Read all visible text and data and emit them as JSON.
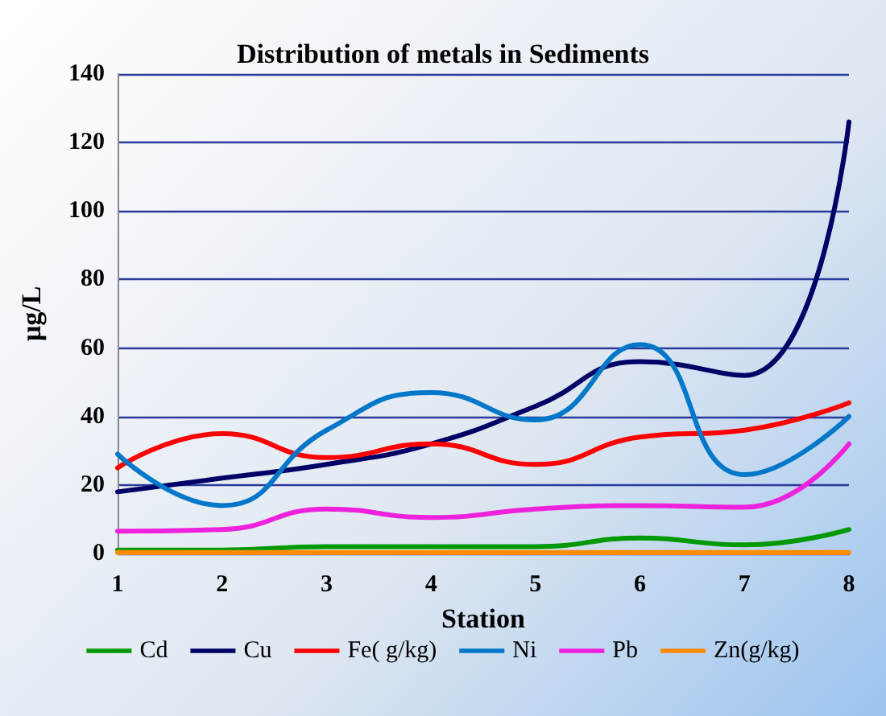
{
  "chart_data": {
    "type": "line",
    "title": "Distribution of metals in Sediments",
    "xlabel": "Station",
    "ylabel": "µg/L",
    "x": [
      1,
      2,
      3,
      4,
      5,
      6,
      7,
      8
    ],
    "xlim": [
      1,
      8
    ],
    "xticks": [
      1,
      2,
      3,
      4,
      5,
      6,
      7,
      8
    ],
    "ylim": [
      0,
      140
    ],
    "yticks": [
      0,
      20,
      40,
      60,
      80,
      100,
      120,
      140
    ],
    "grid": "y",
    "legend": "bottom",
    "marker": "none",
    "line_style": "solid",
    "series": [
      {
        "name": "Cd",
        "color": "#009900",
        "values": [
          1,
          1,
          2,
          2,
          2,
          4.5,
          2.5,
          7
        ]
      },
      {
        "name": "Cu",
        "color": "#000066",
        "values": [
          18,
          22,
          26,
          32,
          43,
          56,
          52,
          126
        ]
      },
      {
        "name": "Fe( g/kg)",
        "color": "#ff0000",
        "values": [
          25,
          35,
          28,
          32,
          26,
          34,
          36,
          44
        ]
      },
      {
        "name": "Ni",
        "color": "#0077c8",
        "values": [
          29,
          14,
          36,
          47,
          39,
          61,
          23,
          40
        ]
      },
      {
        "name": "Pb",
        "color": "#ee22dd",
        "values": [
          6.5,
          7,
          13,
          10.5,
          13,
          14,
          13.5,
          32
        ]
      },
      {
        "name": "Zn(g/kg)",
        "color": "#ff8c00",
        "values": [
          0.3,
          0.3,
          0.3,
          0.3,
          0.3,
          0.3,
          0.3,
          0.3
        ]
      }
    ]
  }
}
